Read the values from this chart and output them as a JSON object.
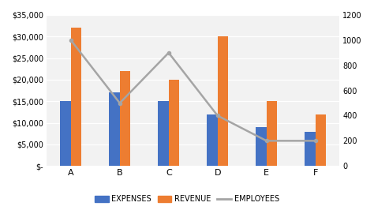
{
  "categories": [
    "A",
    "B",
    "C",
    "D",
    "E",
    "F"
  ],
  "expenses": [
    15000,
    17000,
    15000,
    12000,
    9000,
    8000
  ],
  "revenue": [
    32000,
    22000,
    20000,
    30000,
    15000,
    12000
  ],
  "employees": [
    1000,
    500,
    900,
    400,
    200,
    200
  ],
  "bar_color_expenses": "#4472C4",
  "bar_color_revenue": "#ED7D31",
  "line_color_employees": "#A5A5A5",
  "primary_ylim": [
    0,
    35000
  ],
  "secondary_ylim": [
    0,
    1200
  ],
  "primary_yticks": [
    0,
    5000,
    10000,
    15000,
    20000,
    25000,
    30000,
    35000
  ],
  "secondary_yticks": [
    0,
    200,
    400,
    600,
    800,
    1000,
    1200
  ],
  "primary_ytick_labels": [
    "$-",
    "$5,000",
    "$10,000",
    "$15,000",
    "$20,000",
    "$25,000",
    "$30,000",
    "$35,000"
  ],
  "secondary_ytick_labels": [
    "0",
    "200",
    "400",
    "600",
    "800",
    "1000",
    "1200"
  ],
  "legend_labels": [
    "EXPENSES",
    "REVENUE",
    "EMPLOYEES"
  ],
  "bg_color": "#FFFFFF",
  "plot_bg_color": "#F2F2F2",
  "bar_width": 0.22,
  "grid_color": "#FFFFFF",
  "line_width": 1.8,
  "marker": "o",
  "marker_size": 3,
  "tick_fontsize": 7,
  "xtick_fontsize": 8,
  "legend_fontsize": 7
}
